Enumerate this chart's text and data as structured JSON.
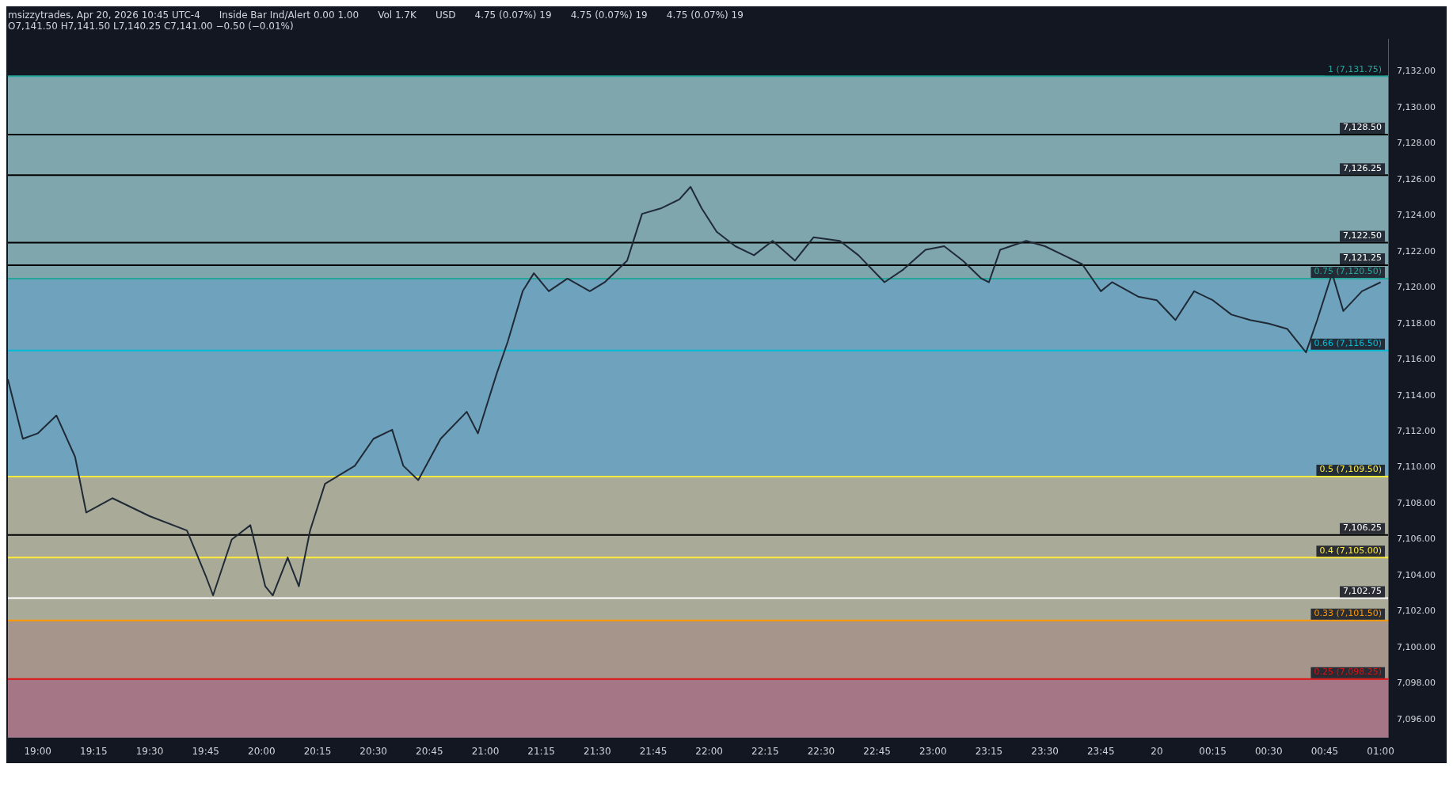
{
  "chart_data": {
    "type": "line",
    "subtitle": "O7,141.50 H7,141.50 L7,140.25 C7,141.00 −0.50 (−0.01%)",
    "annotations": [
      "msizzytrades, Apr 20, 2026 10:45 UTC-4",
      "Inside Bar Ind/Alert 0.00 1.00",
      "Vol 1.7K",
      "USD",
      "4.75 (0.07%) 19",
      "4.75 (0.07%) 19",
      "4.75 (0.07%) 19"
    ],
    "x": [
      "2026-04-19T18:52",
      "2026-04-19T18:56",
      "2026-04-19T19:00",
      "2026-04-19T19:05",
      "2026-04-19T19:10",
      "2026-04-19T19:13",
      "2026-04-19T19:20",
      "2026-04-19T19:30",
      "2026-04-19T19:40",
      "2026-04-19T19:45",
      "2026-04-19T19:47",
      "2026-04-19T19:52",
      "2026-04-19T19:57",
      "2026-04-19T20:01",
      "2026-04-19T20:03",
      "2026-04-19T20:07",
      "2026-04-19T20:10",
      "2026-04-19T20:13",
      "2026-04-19T20:17",
      "2026-04-19T20:25",
      "2026-04-19T20:30",
      "2026-04-19T20:35",
      "2026-04-19T20:38",
      "2026-04-19T20:42",
      "2026-04-19T20:48",
      "2026-04-19T20:55",
      "2026-04-19T20:58",
      "2026-04-19T21:03",
      "2026-04-19T21:06",
      "2026-04-19T21:10",
      "2026-04-19T21:13",
      "2026-04-19T21:17",
      "2026-04-19T21:22",
      "2026-04-19T21:28",
      "2026-04-19T21:32",
      "2026-04-19T21:38",
      "2026-04-19T21:42",
      "2026-04-19T21:47",
      "2026-04-19T21:52",
      "2026-04-19T21:55",
      "2026-04-19T21:58",
      "2026-04-19T22:02",
      "2026-04-19T22:07",
      "2026-04-19T22:12",
      "2026-04-19T22:17",
      "2026-04-19T22:23",
      "2026-04-19T22:28",
      "2026-04-19T22:35",
      "2026-04-19T22:40",
      "2026-04-19T22:47",
      "2026-04-19T22:52",
      "2026-04-19T22:58",
      "2026-04-19T23:03",
      "2026-04-19T23:08",
      "2026-04-19T23:13",
      "2026-04-19T23:15",
      "2026-04-19T23:18",
      "2026-04-19T23:25",
      "2026-04-19T23:30",
      "2026-04-19T23:35",
      "2026-04-19T23:40",
      "2026-04-19T23:45",
      "2026-04-19T23:48",
      "2026-04-19T23:55",
      "2026-04-20T00:00",
      "2026-04-20T00:05",
      "2026-04-20T00:10",
      "2026-04-20T00:15",
      "2026-04-20T00:20",
      "2026-04-20T00:25",
      "2026-04-20T00:30",
      "2026-04-20T00:35",
      "2026-04-20T00:40",
      "2026-04-20T00:43",
      "2026-04-20T00:47",
      "2026-04-20T00:50",
      "2026-04-20T00:55",
      "2026-04-20T01:00"
    ],
    "series": [
      {
        "color": "#1f2a36",
        "values": [
          7114.9,
          7111.6,
          7111.9,
          7112.9,
          7110.6,
          7107.5,
          7108.3,
          7107.3,
          7106.5,
          7104.0,
          7102.9,
          7106.0,
          7106.8,
          7103.4,
          7102.9,
          7105.0,
          7103.4,
          7106.5,
          7109.1,
          7110.1,
          7111.6,
          7112.1,
          7110.1,
          7109.3,
          7111.6,
          7113.1,
          7111.9,
          7115.2,
          7117.0,
          7119.8,
          7120.8,
          7119.8,
          7120.5,
          7119.8,
          7120.3,
          7121.5,
          7124.1,
          7124.4,
          7124.9,
          7125.6,
          7124.4,
          7123.1,
          7122.3,
          7121.8,
          7122.6,
          7121.5,
          7122.8,
          7122.6,
          7121.8,
          7120.3,
          7121.0,
          7122.1,
          7122.3,
          7121.5,
          7120.5,
          7120.3,
          7122.1,
          7122.6,
          7122.3,
          7121.8,
          7121.3,
          7119.8,
          7120.3,
          7119.5,
          7119.3,
          7118.2,
          7119.8,
          7119.3,
          7118.5,
          7118.2,
          7118.0,
          7117.7,
          7116.4,
          7118.2,
          7120.8,
          7118.7,
          7119.8,
          7120.3
        ]
      }
    ],
    "xlim": [
      "2026-04-19T18:52",
      "2026-04-20T01:02"
    ],
    "xticks": [
      {
        "value": "2026-04-19T19:00",
        "label": "19:00"
      },
      {
        "value": "2026-04-19T19:15",
        "label": "19:15"
      },
      {
        "value": "2026-04-19T19:30",
        "label": "19:30"
      },
      {
        "value": "2026-04-19T19:45",
        "label": "19:45"
      },
      {
        "value": "2026-04-19T20:00",
        "label": "20:00"
      },
      {
        "value": "2026-04-19T20:15",
        "label": "20:15"
      },
      {
        "value": "2026-04-19T20:30",
        "label": "20:30"
      },
      {
        "value": "2026-04-19T20:45",
        "label": "20:45"
      },
      {
        "value": "2026-04-19T21:00",
        "label": "21:00"
      },
      {
        "value": "2026-04-19T21:15",
        "label": "21:15"
      },
      {
        "value": "2026-04-19T21:30",
        "label": "21:30"
      },
      {
        "value": "2026-04-19T21:45",
        "label": "21:45"
      },
      {
        "value": "2026-04-19T22:00",
        "label": "22:00"
      },
      {
        "value": "2026-04-19T22:15",
        "label": "22:15"
      },
      {
        "value": "2026-04-19T22:30",
        "label": "22:30"
      },
      {
        "value": "2026-04-19T22:45",
        "label": "22:45"
      },
      {
        "value": "2026-04-19T23:00",
        "label": "23:00"
      },
      {
        "value": "2026-04-19T23:15",
        "label": "23:15"
      },
      {
        "value": "2026-04-19T23:30",
        "label": "23:30"
      },
      {
        "value": "2026-04-19T23:45",
        "label": "23:45"
      },
      {
        "value": "2026-04-20T00:00",
        "label": "20"
      },
      {
        "value": "2026-04-20T00:15",
        "label": "00:15"
      },
      {
        "value": "2026-04-20T00:30",
        "label": "00:30"
      },
      {
        "value": "2026-04-20T00:45",
        "label": "00:45"
      },
      {
        "value": "2026-04-20T01:00",
        "label": "01:00"
      }
    ],
    "ylim": [
      7095,
      7133.8
    ],
    "yticks": [
      {
        "value": 7096,
        "label": "7,096.00"
      },
      {
        "value": 7098,
        "label": "7,098.00"
      },
      {
        "value": 7100,
        "label": "7,100.00"
      },
      {
        "value": 7102,
        "label": "7,102.00"
      },
      {
        "value": 7104,
        "label": "7,104.00"
      },
      {
        "value": 7106,
        "label": "7,106.00"
      },
      {
        "value": 7108,
        "label": "7,108.00"
      },
      {
        "value": 7110,
        "label": "7,110.00"
      },
      {
        "value": 7112,
        "label": "7,112.00"
      },
      {
        "value": 7114,
        "label": "7,114.00"
      },
      {
        "value": 7116,
        "label": "7,116.00"
      },
      {
        "value": 7118,
        "label": "7,118.00"
      },
      {
        "value": 7120,
        "label": "7,120.00"
      },
      {
        "value": 7122,
        "label": "7,122.00"
      },
      {
        "value": 7124,
        "label": "7,124.00"
      },
      {
        "value": 7126,
        "label": "7,126.00"
      },
      {
        "value": 7128,
        "label": "7,128.00"
      },
      {
        "value": 7130,
        "label": "7,130.00"
      },
      {
        "value": 7132,
        "label": "7,132.00"
      }
    ],
    "bands": [
      {
        "axis": "y",
        "from": 7120.5,
        "to": 7131.75,
        "color": "#7fa5ad"
      },
      {
        "axis": "y",
        "from": 7109.5,
        "to": 7120.5,
        "color": "#6fa3bd"
      },
      {
        "axis": "y",
        "from": 7101.5,
        "to": 7109.5,
        "color": "#a9ab98"
      },
      {
        "axis": "y",
        "from": 7098.25,
        "to": 7101.5,
        "color": "#a6958a"
      },
      {
        "axis": "y",
        "from": 7095,
        "to": 7098.25,
        "color": "#a57686"
      }
    ],
    "ref_lines": [
      {
        "axis": "y",
        "value": 7131.75,
        "label": "1 (7,131.75)",
        "color": "#26a69a"
      },
      {
        "axis": "y",
        "value": 7128.5,
        "label": "7,128.50",
        "color": "#000000"
      },
      {
        "axis": "y",
        "value": 7126.25,
        "label": "7,126.25",
        "color": "#000000"
      },
      {
        "axis": "y",
        "value": 7122.5,
        "label": "7,122.50",
        "color": "#000000"
      },
      {
        "axis": "y",
        "value": 7121.25,
        "label": "7,121.25",
        "color": "#000000"
      },
      {
        "axis": "y",
        "value": 7120.5,
        "label": "0.75 (7,120.50)",
        "color": "#26a69a"
      },
      {
        "axis": "y",
        "value": 7116.5,
        "label": "0.66 (7,116.50)",
        "color": "#00bcd4"
      },
      {
        "axis": "y",
        "value": 7109.5,
        "label": "0.5 (7,109.50)",
        "color": "#ffeb3b"
      },
      {
        "axis": "y",
        "value": 7106.25,
        "label": "7,106.25",
        "color": "#000000"
      },
      {
        "axis": "y",
        "value": 7105,
        "label": "0.4 (7,105.00)",
        "color": "#ffeb3b"
      },
      {
        "axis": "y",
        "value": 7102.75,
        "label": "7,102.75",
        "color": "#ffffff"
      },
      {
        "axis": "y",
        "value": 7101.5,
        "label": "0.33 (7,101.50)",
        "color": "#ff9800"
      },
      {
        "axis": "y",
        "value": 7098.25,
        "label": "0.25 (7,098.25)",
        "color": "#e01010"
      }
    ],
    "grid": false,
    "legend": false
  }
}
